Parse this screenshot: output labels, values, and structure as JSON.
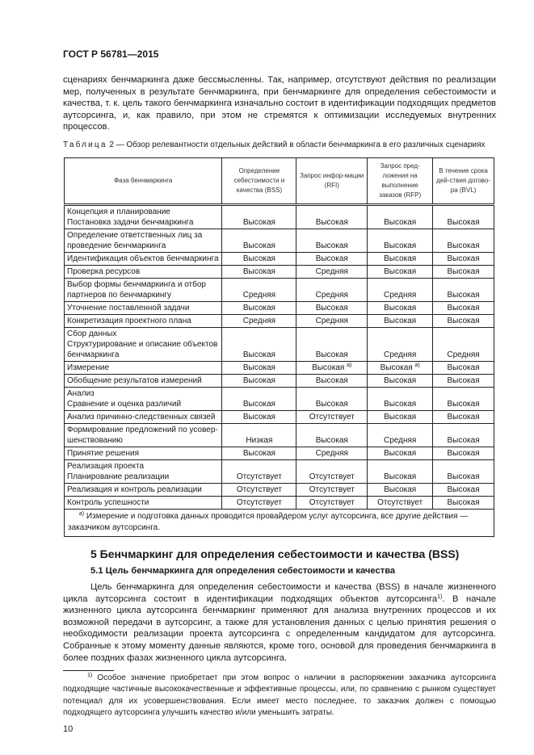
{
  "header": {
    "standard": "ГОСТ Р 56781—2015"
  },
  "intro_paragraph": "сценариях бенчмаркинга даже бессмысленны. Так, например, отсутствуют действия по реализации мер, полученных в результате бенчмаркинга, при бенчмаркинге для определения себестоимости и качества, т. к. цель такого бенчмаркинга изначально состоит в идентификации подходящих предметов аутсорсинга, и, как правило, при этом не стремятся к оптимизации исследуемых внутренних процессов.",
  "table": {
    "caption_label": "Таблица",
    "caption_text": " 2 — Обзор релевантности отдельных действий в области бенчмаркинга в его различных сценариях",
    "headers": [
      "Фаза бенчмаркинга",
      "Определение себестоимости и качества (BSS)",
      "Запрос инфор-мации (RFI)",
      "Запрос пред-ложения на выполнение заказов (RFP)",
      "В течение срока дей-ствия догово-ра (BVL)"
    ],
    "rows": [
      {
        "phase": "Концепция и планирование\nПостановка задачи бенчмаркинга",
        "values": [
          "Высокая",
          "Высокая",
          "Высокая",
          "Высокая"
        ]
      },
      {
        "phase": "Определение ответственных лиц за проведение бенчмаркинга",
        "values": [
          "Высокая",
          "Высокая",
          "Высокая",
          "Высокая"
        ]
      },
      {
        "phase": "Идентификация объектов бенчмаркинга",
        "values": [
          "Высокая",
          "Высокая",
          "Высокая",
          "Высокая"
        ]
      },
      {
        "phase": "Проверка ресурсов",
        "values": [
          "Высокая",
          "Средняя",
          "Высокая",
          "Высокая"
        ]
      },
      {
        "phase": "Выбор формы бенчмаркинга и отбор партнеров по бенчмаркингу",
        "values": [
          "Средняя",
          "Средняя",
          "Средняя",
          "Высокая"
        ]
      },
      {
        "phase": "Уточнение поставленной задачи",
        "values": [
          "Высокая",
          "Высокая",
          "Высокая",
          "Высокая"
        ]
      },
      {
        "phase": "Конкретизация проектного плана",
        "values": [
          "Средняя",
          "Средняя",
          "Высокая",
          "Высокая"
        ]
      },
      {
        "phase": "Сбор данных\nСтруктурирование и описание объектов бенчмаркинга",
        "values": [
          "Высокая",
          "Высокая",
          "Средняя",
          "Средняя"
        ]
      },
      {
        "phase": "Измерение",
        "values": [
          "Высокая",
          "Высокая",
          "Высокая",
          "Высокая"
        ],
        "notes": [
          "",
          "а)",
          "а)",
          ""
        ]
      },
      {
        "phase": "Обобщение результатов измерений",
        "values": [
          "Высокая",
          "Высокая",
          "Высокая",
          "Высокая"
        ]
      },
      {
        "phase": "Анализ\nСравнение и оценка различий",
        "values": [
          "Высокая",
          "Высокая",
          "Высокая",
          "Высокая"
        ]
      },
      {
        "phase": "Анализ причинно-следственных связей",
        "values": [
          "Высокая",
          "Отсутствует",
          "Высокая",
          "Высокая"
        ]
      },
      {
        "phase": "Формирование предложений по усовер-шенствованию",
        "values": [
          "Низкая",
          "Высокая",
          "Средняя",
          "Высокая"
        ]
      },
      {
        "phase": "Принятие решения",
        "values": [
          "Высокая",
          "Средняя",
          "Высокая",
          "Высокая"
        ]
      },
      {
        "phase": "Реализация проекта\nПланирование реализации",
        "values": [
          "Отсутствует",
          "Отсутствует",
          "Высокая",
          "Высокая"
        ]
      },
      {
        "phase": "Реализация и контроль реализации",
        "values": [
          "Отсутствует",
          "Отсутствует",
          "Высокая",
          "Высокая"
        ]
      },
      {
        "phase": "Контроль успешности",
        "values": [
          "Отсутствует",
          "Отсутствует",
          "Отсутствует",
          "Высокая"
        ]
      }
    ],
    "footnote_mark": "а)",
    "footnote": " Измерение и подготовка данных проводится провайдером услуг аутсорсинга, все другие действия — заказчиком аутсорсинга."
  },
  "section": {
    "title": "5 Бенчмаркинг для определения себестоимости и качества (BSS)",
    "subtitle": "5.1 Цель бенчмаркинга для определения себестоимости и качества",
    "para_before": "Цель бенчмаркинга для определения себестоимости и качества (BSS) в начале жизненного цикла аутсорсинга состоит в идентификации подходящих объектов аутсорсинга",
    "para_mark": "1)",
    "para_after": ". В начале жизненного цикла аутсорсинга бенчмаркинг применяют для анализа внутренних процессов и их возможной передачи в аутсорсинг, а также для установления данных с целью принятия решения о необходимости реализации проекта аутсорсинга с определенным кандидатом для аутсорсинга. Собранные к этому моменту данные являются, кроме того, основой для проведения бенчмаркинга в более поздних фазах жизненного цикла аутсорсинга."
  },
  "footnote": {
    "mark": "1)",
    "text": " Особое значение приобретает при этом вопрос о наличии в распоряжении заказчика аутсорсинга подходящие частичные высококачественные и эффективные процессы, или, по сравнению с рынком существует потенциал для их усовершенствования. Если имеет место последнее, то заказчик должен с помощью подходящего аутсорсинга улучшить качество и/или уменьшить затраты."
  },
  "page_number": "10"
}
